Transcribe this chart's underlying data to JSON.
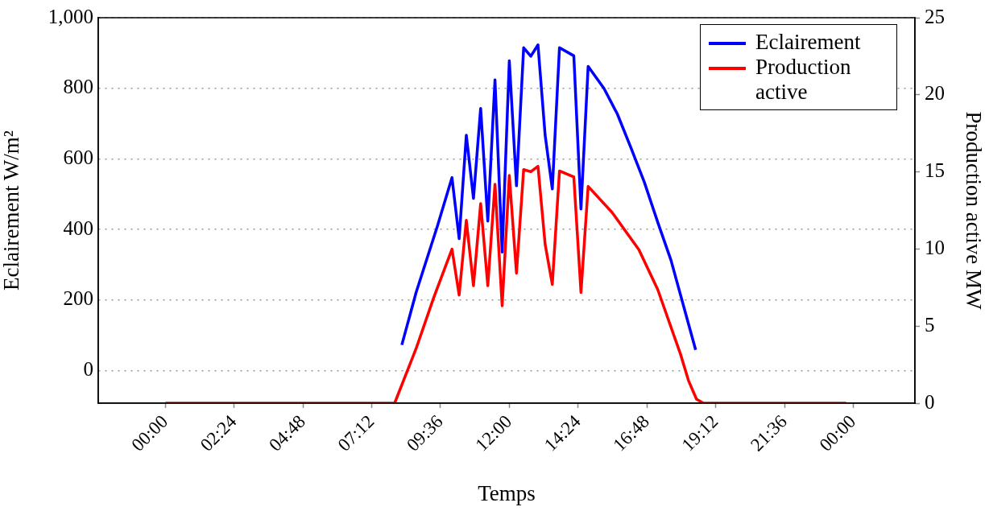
{
  "chart_data": {
    "type": "line",
    "xlabel": "Temps",
    "ylabel": "Eclairement W/m²",
    "y2label": "Production active MW",
    "xlim": [
      -2.34,
      26.15
    ],
    "xticks": [
      {
        "value": 0,
        "label": "00:00"
      },
      {
        "value": 2.4,
        "label": "02:24"
      },
      {
        "value": 4.8,
        "label": "04:48"
      },
      {
        "value": 7.2,
        "label": "07:12"
      },
      {
        "value": 9.6,
        "label": "09:36"
      },
      {
        "value": 12,
        "label": "12:00"
      },
      {
        "value": 14.4,
        "label": "14:24"
      },
      {
        "value": 16.8,
        "label": "16:48"
      },
      {
        "value": 19.2,
        "label": "19:12"
      },
      {
        "value": 21.6,
        "label": "21:36"
      },
      {
        "value": 24,
        "label": "00:00"
      }
    ],
    "ylim": [
      -92,
      1000
    ],
    "yticks": [
      0,
      200,
      400,
      600,
      {
        "value": 800,
        "label": "800"
      },
      {
        "value": 1000,
        "label": "1,000"
      }
    ],
    "y2lim": [
      0,
      25
    ],
    "y2ticks": [
      0,
      5,
      10,
      15,
      20,
      25
    ],
    "grid": "y",
    "legend": "top right",
    "marker": "none",
    "line_style": "solid",
    "series": [
      {
        "name": "Eclairement",
        "color": "#0000ff",
        "x": [
          8.25,
          8.75,
          9.5,
          10,
          10.25,
          10.5,
          10.75,
          11,
          11.25,
          11.5,
          11.75,
          12,
          12.25,
          12.5,
          12.75,
          13,
          13.25,
          13.5,
          13.75,
          14.25,
          14.5,
          14.75,
          15.3,
          15.77,
          16.24,
          16.71,
          17.18,
          17.64,
          18.1,
          18.5
        ],
        "values": [
          73,
          222,
          412,
          547,
          374,
          667,
          488,
          743,
          424,
          824,
          336,
          878,
          524,
          915,
          891,
          923,
          667,
          515,
          915,
          892,
          458,
          862,
          800,
          727,
          632,
          534,
          420,
          313,
          177,
          59
        ]
      },
      {
        "name": "Production active",
        "color": "#ff0000",
        "axis": "y2",
        "x": [
          0,
          8,
          8.75,
          9.36,
          10,
          10.25,
          10.5,
          10.75,
          11,
          11.25,
          11.5,
          11.75,
          12,
          12.25,
          12.5,
          12.75,
          13,
          13.25,
          13.5,
          13.75,
          14.25,
          14.5,
          14.75,
          15.58,
          16.52,
          17.18,
          17.97,
          18.25,
          18.53,
          18.77,
          23.75
        ],
        "values": [
          0,
          0,
          3.55,
          6.83,
          9.99,
          7.01,
          11.86,
          7.62,
          12.94,
          7.62,
          14.2,
          6.32,
          14.77,
          8.43,
          15.15,
          15.01,
          15.36,
          10.3,
          7.7,
          15.06,
          14.67,
          7.18,
          14.06,
          12.38,
          9.96,
          7.36,
          3.19,
          1.47,
          0.26,
          0,
          0
        ]
      }
    ]
  }
}
